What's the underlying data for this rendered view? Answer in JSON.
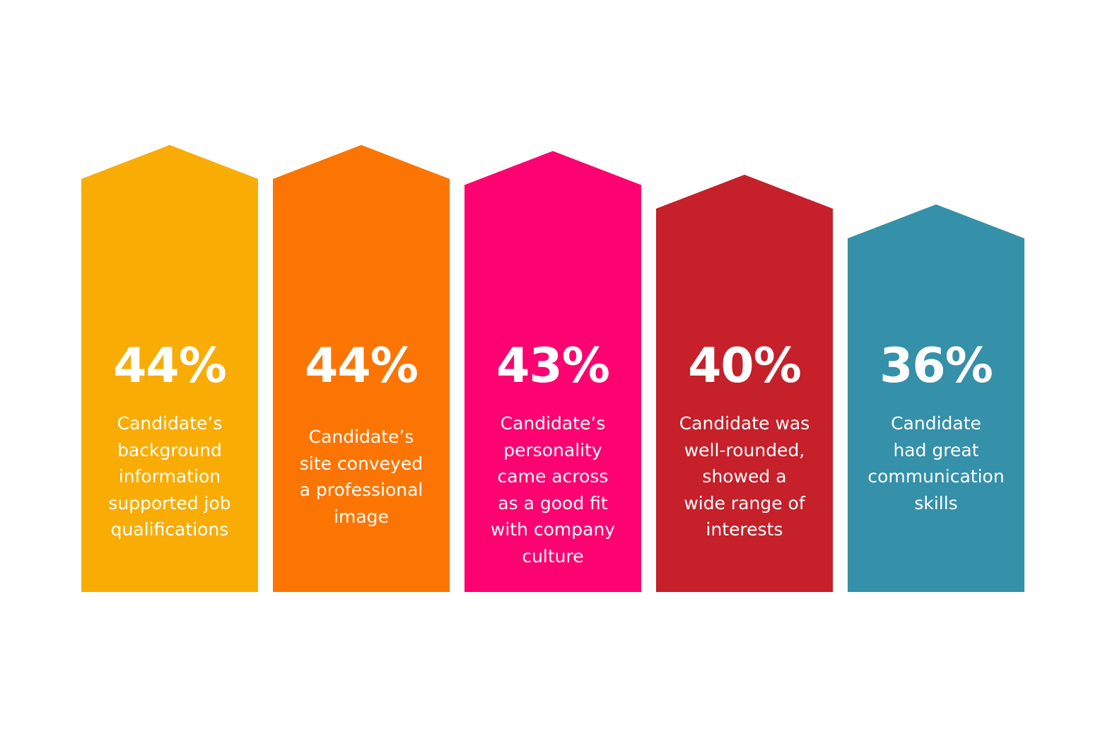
{
  "chart_data": {
    "type": "bar",
    "categories": [
      "Candidate’s background information supported job qualifications",
      "Candidate’s site conveyed a professional image",
      "Candidate’s personality came across as a good fit with company culture",
      "Candidate was well-rounded, showed a wide range of interests",
      "Candidate had great communication skills"
    ],
    "values": [
      44,
      44,
      43,
      40,
      36
    ],
    "value_labels": [
      "44%",
      "44%",
      "43%",
      "40%",
      "36%"
    ],
    "description_lines": [
      [
        "Candidate’s",
        "background",
        "information",
        "supported job",
        "qualifications"
      ],
      [
        "Candidate’s",
        "site conveyed",
        "a professional",
        "image"
      ],
      [
        "Candidate’s",
        "personality",
        "came across",
        "as a good fit",
        "with company",
        "culture"
      ],
      [
        "Candidate was",
        "well-rounded,",
        "showed a",
        "wide range of",
        "interests"
      ],
      [
        "Candidate",
        "had great",
        "communication",
        "skills"
      ]
    ],
    "colors": [
      "#F9AC04",
      "#FC7502",
      "#FD0270",
      "#C6202A",
      "#3590A9"
    ],
    "ylim": [
      0,
      44
    ],
    "grid": false,
    "legend": "none",
    "title": "",
    "xlabel": "",
    "ylabel": ""
  }
}
